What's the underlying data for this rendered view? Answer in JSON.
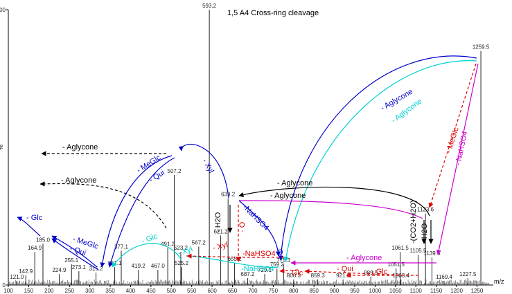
{
  "chart_data": {
    "type": "bar",
    "title": "",
    "xlabel": "m/z",
    "ylabel": "%",
    "xlim": [
      100,
      1290
    ],
    "ylim": [
      0,
      100
    ],
    "x_ticks": [
      100,
      150,
      200,
      250,
      300,
      350,
      400,
      450,
      500,
      550,
      600,
      650,
      700,
      750,
      800,
      850,
      900,
      950,
      1000,
      1050,
      1100,
      1150,
      1200,
      1250
    ],
    "y_ticks": [
      0,
      100
    ],
    "peaks": [
      {
        "mz": 121.0,
        "intensity": 1.5,
        "label": "121.0"
      },
      {
        "mz": 142.9,
        "intensity": 3.5,
        "label": "142.9"
      },
      {
        "mz": 164.9,
        "intensity": 12.0,
        "label": "164.9"
      },
      {
        "mz": 185.0,
        "intensity": 15.0,
        "label": "185.0"
      },
      {
        "mz": 224.9,
        "intensity": 4.0,
        "label": "224.9"
      },
      {
        "mz": 255.1,
        "intensity": 7.5,
        "label": "255.1"
      },
      {
        "mz": 273.1,
        "intensity": 5.0,
        "label": "273.1"
      },
      {
        "mz": 315.2,
        "intensity": 4.5,
        "label": "315.2"
      },
      {
        "mz": 361.1,
        "intensity": 6.5,
        "label": "361.1"
      },
      {
        "mz": 377.1,
        "intensity": 12.5,
        "label": "377.1"
      },
      {
        "mz": 419.2,
        "intensity": 5.5,
        "label": "419.2"
      },
      {
        "mz": 467.0,
        "intensity": 5.5,
        "label": "467.0"
      },
      {
        "mz": 491.2,
        "intensity": 13.5,
        "label": "491.2"
      },
      {
        "mz": 507.2,
        "intensity": 40.0,
        "label": "507.2"
      },
      {
        "mz": 523.2,
        "intensity": 12.0,
        "label": "523.2"
      },
      {
        "mz": 525.2,
        "intensity": 6.5,
        "label": "525.2"
      },
      {
        "mz": 567.2,
        "intensity": 14.0,
        "label": "567.2"
      },
      {
        "mz": 593.2,
        "intensity": 100.0,
        "label": "593.2"
      },
      {
        "mz": 621.2,
        "intensity": 18.0,
        "label": "621.2"
      },
      {
        "mz": 639.2,
        "intensity": 31.5,
        "label": "639.2"
      },
      {
        "mz": 655.2,
        "intensity": 8.0,
        "label": "655.2"
      },
      {
        "mz": 687.2,
        "intensity": 2.5,
        "label": "687.2"
      },
      {
        "mz": 729.1,
        "intensity": 4.0,
        "label": "729.1"
      },
      {
        "mz": 759.2,
        "intensity": 6.0,
        "label": "759.2"
      },
      {
        "mz": 775.3,
        "intensity": 7.5,
        "label": "775.3"
      },
      {
        "mz": 800.3,
        "intensity": 2.0,
        "label": "800.3"
      },
      {
        "mz": 859.3,
        "intensity": 2.0,
        "label": "859.3"
      },
      {
        "mz": 921.3,
        "intensity": 2.0,
        "label": "921.3"
      },
      {
        "mz": 989.5,
        "intensity": 3.0,
        "label": "989.5"
      },
      {
        "mz": 1051.5,
        "intensity": 6.0,
        "label": "1051.5"
      },
      {
        "mz": 1061.5,
        "intensity": 12.0,
        "label": "1061.5"
      },
      {
        "mz": 1063.4,
        "intensity": 2.0,
        "label": "1063.4"
      },
      {
        "mz": 1105.5,
        "intensity": 11.0,
        "label": "1105.5"
      },
      {
        "mz": 1123.6,
        "intensity": 26.0,
        "label": "1123.6"
      },
      {
        "mz": 1139.5,
        "intensity": 10.0,
        "label": "1139.5"
      },
      {
        "mz": 1169.4,
        "intensity": 1.5,
        "label": "1169.4"
      },
      {
        "mz": 1227.5,
        "intensity": 2.5,
        "label": "1227.5"
      },
      {
        "mz": 1259.5,
        "intensity": 85.0,
        "label": "1259.5"
      }
    ],
    "annotations": [
      {
        "text": "1,5 A4 Cross-ring cleavage",
        "color": "#000000"
      },
      {
        "text": "- Aglycone",
        "color": "#000000"
      },
      {
        "text": "- Aglycone",
        "color": "#000000"
      },
      {
        "text": "- Aglycone",
        "color": "#000000"
      },
      {
        "text": "- Aglycone",
        "color": "#000000"
      },
      {
        "text": "- Aglycone",
        "color": "#0000cc"
      },
      {
        "text": "- Aglycone",
        "color": "#00d0d0"
      },
      {
        "text": "- Aglycone",
        "color": "#cc00cc"
      },
      {
        "text": "- Glc",
        "color": "#0000cc"
      },
      {
        "text": "- MeGlc",
        "color": "#0000cc"
      },
      {
        "text": "- Qui",
        "color": "#0000cc"
      },
      {
        "text": "- MeGlc",
        "color": "#0000cc"
      },
      {
        "text": "- Qui",
        "color": "#0000cc"
      },
      {
        "text": "- Xyl",
        "color": "#0000cc"
      },
      {
        "text": "- Glc",
        "color": "#00d0d0"
      },
      {
        "text": "- Xyl",
        "color": "#00d0d0"
      },
      {
        "text": "-NaHSO4",
        "color": "#00d0d0"
      },
      {
        "text": "-NaHSO4",
        "color": "#0000cc"
      },
      {
        "text": "- H2O",
        "color": "#000000"
      },
      {
        "text": "- Xyl",
        "color": "#dd0000"
      },
      {
        "text": "- O",
        "color": "#dd0000"
      },
      {
        "text": "-NaHSO4",
        "color": "#dd0000"
      },
      {
        "text": "- Glc",
        "color": "#dd0000"
      },
      {
        "text": "- Qui",
        "color": "#dd0000"
      },
      {
        "text": "- Glc",
        "color": "#dd0000"
      },
      {
        "text": "- MeGlc",
        "color": "#dd0000"
      },
      {
        "text": "- NaHSO4",
        "color": "#cc00cc"
      },
      {
        "text": "-(CO2+H2O)",
        "color": "#000000"
      },
      {
        "text": "- H2O",
        "color": "#000000"
      },
      {
        "text": "O",
        "color": "#0000cc"
      }
    ],
    "grid": false,
    "legend": "none"
  }
}
